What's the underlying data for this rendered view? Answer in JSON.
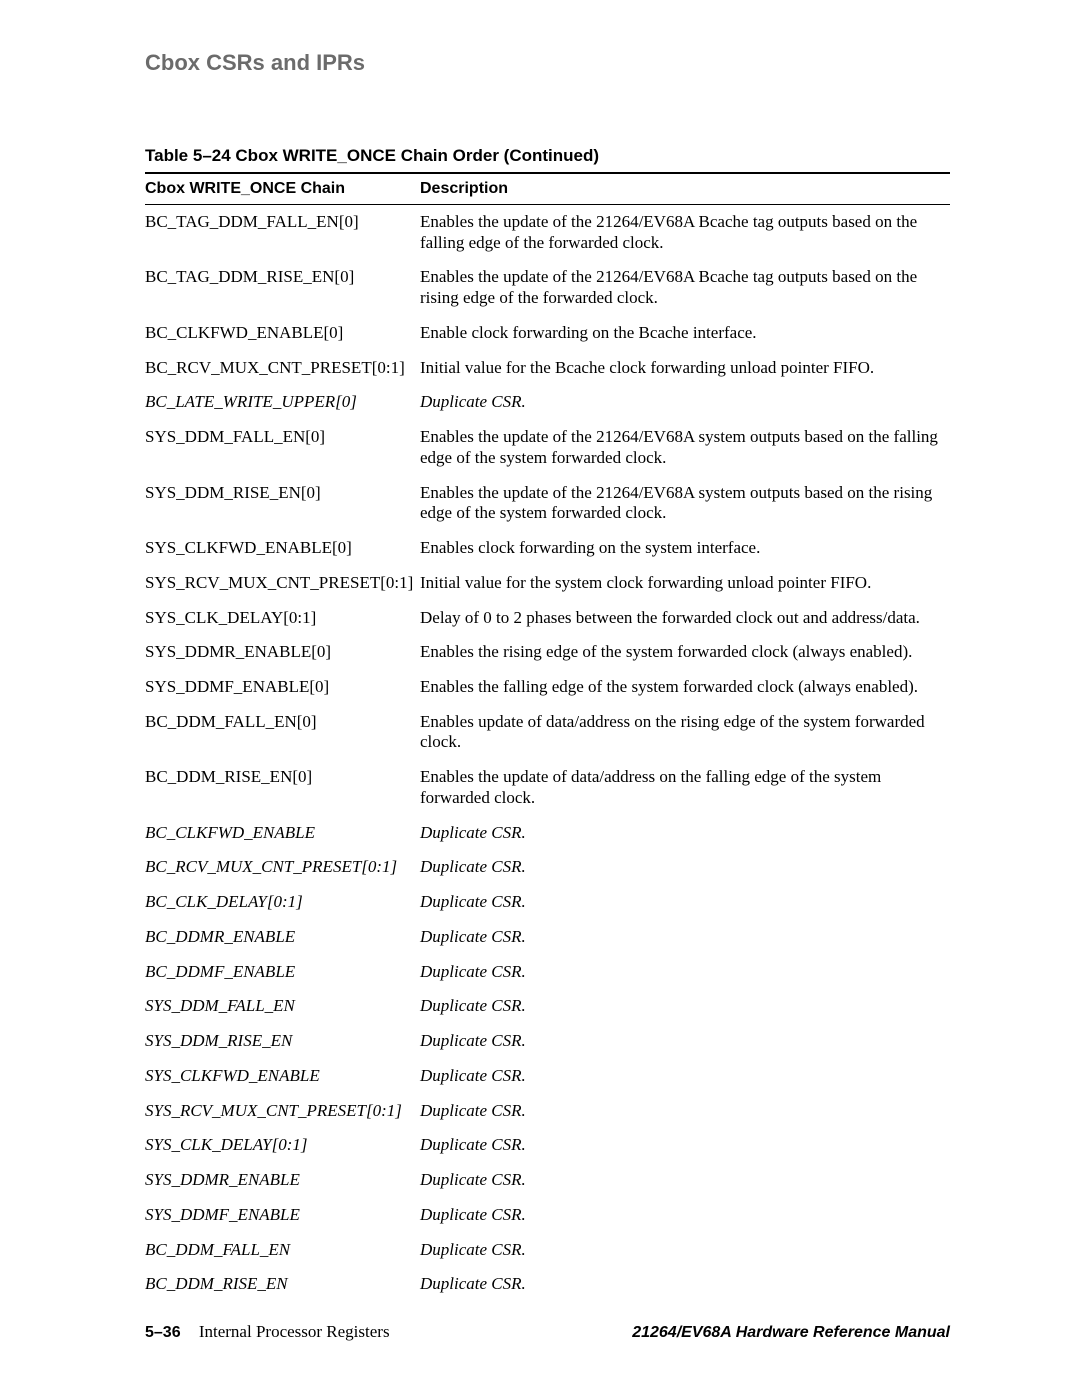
{
  "header": {
    "running_title": "Cbox CSRs and IPRs"
  },
  "table": {
    "caption": "Table 5–24  Cbox WRITE_ONCE Chain Order (Continued)",
    "columns": [
      {
        "label": "Cbox WRITE_ONCE Chain"
      },
      {
        "label": "Description"
      }
    ],
    "rows": [
      {
        "name": "BC_TAG_DDM_FALL_EN[0]",
        "desc": "Enables the update of the 21264/EV68A Bcache tag outputs based on the falling edge of the forwarded clock.",
        "italic": false
      },
      {
        "name": "BC_TAG_DDM_RISE_EN[0]",
        "desc": "Enables the update of the 21264/EV68A Bcache tag outputs based on the rising edge of the forwarded clock.",
        "italic": false
      },
      {
        "name": "BC_CLKFWD_ENABLE[0]",
        "desc": "Enable clock forwarding on the Bcache interface.",
        "italic": false
      },
      {
        "name": "BC_RCV_MUX_CNT_PRESET[0:1]",
        "desc": "Initial value for the Bcache clock forwarding unload pointer FIFO.",
        "italic": false
      },
      {
        "name": "BC_LATE_WRITE_UPPER[0]",
        "desc": "Duplicate CSR.",
        "italic": true
      },
      {
        "name": "SYS_DDM_FALL_EN[0]",
        "desc": "Enables the update of the 21264/EV68A system outputs based on the falling edge of the system forwarded clock.",
        "italic": false
      },
      {
        "name": "SYS_DDM_RISE_EN[0]",
        "desc": "Enables the update of the 21264/EV68A system outputs based on the rising edge of the system forwarded clock.",
        "italic": false
      },
      {
        "name": "SYS_CLKFWD_ENABLE[0]",
        "desc": "Enables clock forwarding on the system interface.",
        "italic": false
      },
      {
        "name": "SYS_RCV_MUX_CNT_PRESET[0:1]",
        "desc": "Initial value for the system clock forwarding unload pointer FIFO.",
        "italic": false
      },
      {
        "name": "SYS_CLK_DELAY[0:1]",
        "desc": "Delay of 0 to 2 phases between the forwarded clock out and address/data.",
        "italic": false
      },
      {
        "name": "SYS_DDMR_ENABLE[0]",
        "desc": "Enables the rising edge of the system forwarded clock (always enabled).",
        "italic": false
      },
      {
        "name": "SYS_DDMF_ENABLE[0]",
        "desc": "Enables the falling edge of the system forwarded clock (always enabled).",
        "italic": false
      },
      {
        "name": "BC_DDM_FALL_EN[0]",
        "desc": "Enables update of data/address on the rising edge of the system forwarded clock.",
        "italic": false
      },
      {
        "name": "BC_DDM_RISE_EN[0]",
        "desc": "Enables the update of data/address on the falling edge of the system forwarded clock.",
        "italic": false
      },
      {
        "name": "BC_CLKFWD_ENABLE",
        "desc": "Duplicate CSR.",
        "italic": true
      },
      {
        "name": "BC_RCV_MUX_CNT_PRESET[0:1]",
        "desc": "Duplicate CSR.",
        "italic": true
      },
      {
        "name": "BC_CLK_DELAY[0:1]",
        "desc": "Duplicate CSR.",
        "italic": true
      },
      {
        "name": "BC_DDMR_ENABLE",
        "desc": "Duplicate CSR.",
        "italic": true
      },
      {
        "name": "BC_DDMF_ENABLE",
        "desc": "Duplicate CSR.",
        "italic": true
      },
      {
        "name": "SYS_DDM_FALL_EN",
        "desc": "Duplicate CSR.",
        "italic": true
      },
      {
        "name": "SYS_DDM_RISE_EN",
        "desc": "Duplicate CSR.",
        "italic": true
      },
      {
        "name": "SYS_CLKFWD_ENABLE",
        "desc": "Duplicate CSR.",
        "italic": true
      },
      {
        "name": "SYS_RCV_MUX_CNT_PRESET[0:1]",
        "desc": "Duplicate CSR.",
        "italic": true
      },
      {
        "name": "SYS_CLK_DELAY[0:1]",
        "desc": "Duplicate CSR.",
        "italic": true
      },
      {
        "name": "SYS_DDMR_ENABLE",
        "desc": "Duplicate CSR.",
        "italic": true
      },
      {
        "name": "SYS_DDMF_ENABLE",
        "desc": "Duplicate CSR.",
        "italic": true
      },
      {
        "name": "BC_DDM_FALL_EN",
        "desc": "Duplicate CSR.",
        "italic": true
      },
      {
        "name": "BC_DDM_RISE_EN",
        "desc": "Duplicate CSR.",
        "italic": true
      }
    ]
  },
  "footer": {
    "page_number": "5–36",
    "section_title": "Internal Processor Registers",
    "manual_title": "21264/EV68A Hardware Reference Manual"
  }
}
